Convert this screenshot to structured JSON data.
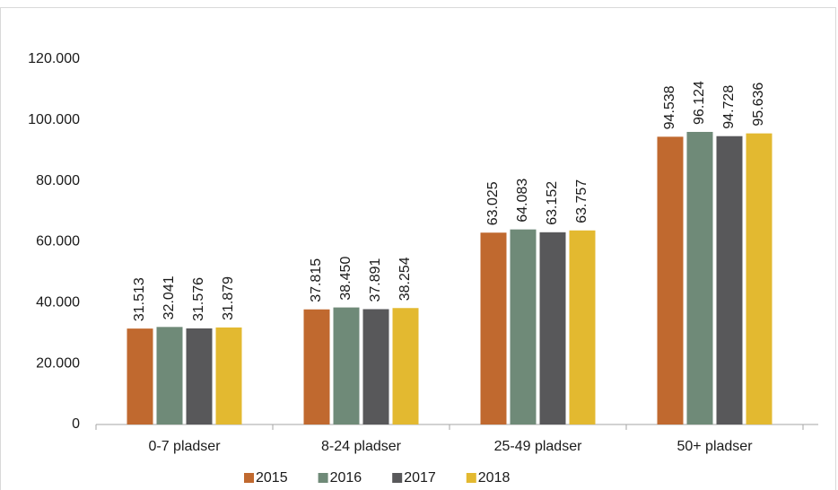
{
  "chart_data": {
    "type": "bar",
    "categories": [
      "0-7 pladser",
      "8-24 pladser",
      "25-49 pladser",
      "50+ pladser"
    ],
    "series": [
      {
        "name": "2015",
        "color": "#c0692f",
        "values": [
          31513,
          37815,
          63025,
          94538
        ],
        "value_labels": [
          "31.513",
          "37.815",
          "63.025",
          "94.538"
        ]
      },
      {
        "name": "2016",
        "color": "#6f8a78",
        "values": [
          32041,
          38450,
          64083,
          96124
        ],
        "value_labels": [
          "32.041",
          "38.450",
          "64.083",
          "96.124"
        ]
      },
      {
        "name": "2017",
        "color": "#58585a",
        "values": [
          31576,
          37891,
          63152,
          94728
        ],
        "value_labels": [
          "31.576",
          "37.891",
          "63.152",
          "94.728"
        ]
      },
      {
        "name": "2018",
        "color": "#e3b930",
        "values": [
          31879,
          38254,
          63757,
          95636
        ],
        "value_labels": [
          "31.879",
          "38.254",
          "63.757",
          "95.636"
        ]
      }
    ],
    "ylim": [
      0,
      120000
    ],
    "yticks": [
      0,
      {
        "value": 20000,
        "label": "20.000"
      },
      {
        "value": 40000,
        "label": "40.000"
      },
      {
        "value": 60000,
        "label": "60.000"
      },
      {
        "value": 80000,
        "label": "80.000"
      },
      {
        "value": 100000,
        "label": "100.000"
      },
      {
        "value": 120000,
        "label": "120.000"
      }
    ],
    "grid": false,
    "legend": "bottom"
  }
}
